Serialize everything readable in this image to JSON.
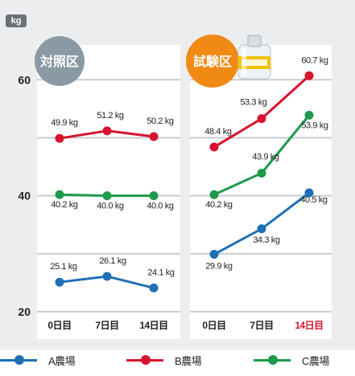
{
  "unit": "kg",
  "chart_data": {
    "type": "line",
    "y_axis": {
      "ticks": [
        20,
        40,
        60
      ],
      "ylim": [
        20,
        66
      ],
      "grid": true
    },
    "panels": [
      {
        "title": "対照区",
        "title_color": "#8a9aa4",
        "categories": [
          "0日目",
          "7日目",
          "14日目"
        ],
        "highlight_category_index": null,
        "series": [
          {
            "name": "A農場",
            "color": "#1e6fb5",
            "values": [
              25.1,
              26.1,
              24.1
            ],
            "labels": [
              "25.1 kg",
              "26.1 kg",
              "24.1 kg"
            ]
          },
          {
            "name": "B農場",
            "color": "#d7142f",
            "values": [
              49.9,
              51.2,
              50.2
            ],
            "labels": [
              "49.9 kg",
              "51.2 kg",
              "50.2 kg"
            ]
          },
          {
            "name": "C農場",
            "color": "#1e9a4a",
            "values": [
              40.2,
              40.0,
              40.0
            ],
            "labels": [
              "40.2 kg",
              "40.0 kg",
              "40.0 kg"
            ]
          }
        ]
      },
      {
        "title": "試験区",
        "title_color": "#f08a14",
        "categories": [
          "0日目",
          "7日目",
          "14日目"
        ],
        "highlight_category_index": 2,
        "highlight_color": "#d7142f",
        "series": [
          {
            "name": "A農場",
            "color": "#1e6fb5",
            "values": [
              29.9,
              34.3,
              40.5
            ],
            "labels": [
              "29.9 kg",
              "34.3 kg",
              "40.5 kg"
            ]
          },
          {
            "name": "B農場",
            "color": "#d7142f",
            "values": [
              48.4,
              53.3,
              60.7
            ],
            "labels": [
              "48.4 kg",
              "53.3 kg",
              "60.7 kg"
            ]
          },
          {
            "name": "C農場",
            "color": "#1e9a4a",
            "values": [
              40.2,
              43.9,
              53.9
            ],
            "labels": [
              "40.2 kg",
              "43.9 kg",
              "53.9 kg"
            ]
          }
        ]
      }
    ],
    "legend": [
      {
        "name": "A農場",
        "color": "#1e6fb5"
      },
      {
        "name": "B農場",
        "color": "#d7142f"
      },
      {
        "name": "C農場",
        "color": "#1e9a4a"
      }
    ],
    "legend_placement": "bottom"
  }
}
